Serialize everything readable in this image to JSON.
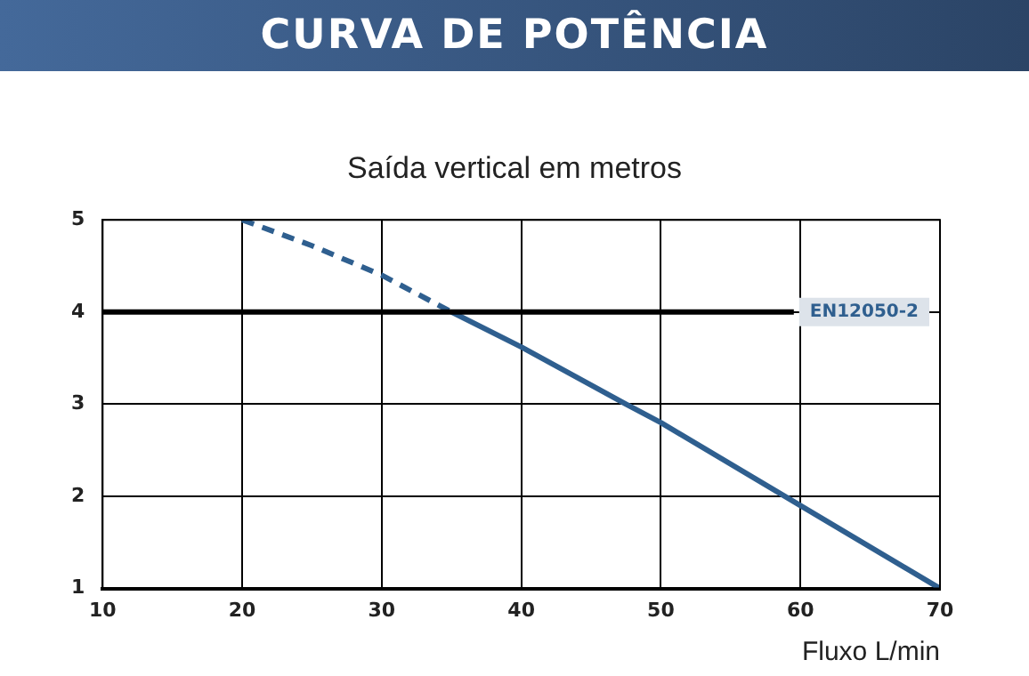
{
  "chart_data": {
    "type": "line",
    "title": "CURVA DE POTÊNCIA",
    "subtitle": "Saída vertical em metros",
    "xlabel": "Fluxo L/min",
    "series": [
      {
        "color": "#2f5f8f",
        "line_style": "dashed",
        "x": [
          20,
          25,
          30,
          35
        ],
        "values": [
          5,
          4.72,
          4.4,
          4
        ]
      },
      {
        "color": "#2f5f8f",
        "line_style": "solid",
        "x": [
          35,
          40,
          47.5,
          50,
          60,
          70
        ],
        "values": [
          4,
          3.62,
          3,
          2.8,
          1.9,
          1
        ]
      }
    ],
    "xlim": [
      10,
      70
    ],
    "xticks": [
      10,
      20,
      30,
      40,
      50,
      60,
      70
    ],
    "ylim": [
      1,
      5
    ],
    "yticks": [
      1,
      2,
      3,
      4,
      5
    ],
    "ref_lines": [
      {
        "axis": "y",
        "value": 4,
        "label": "EN12050-2",
        "color": "#000000"
      }
    ],
    "grid": true,
    "legend": false,
    "marker": "none"
  }
}
